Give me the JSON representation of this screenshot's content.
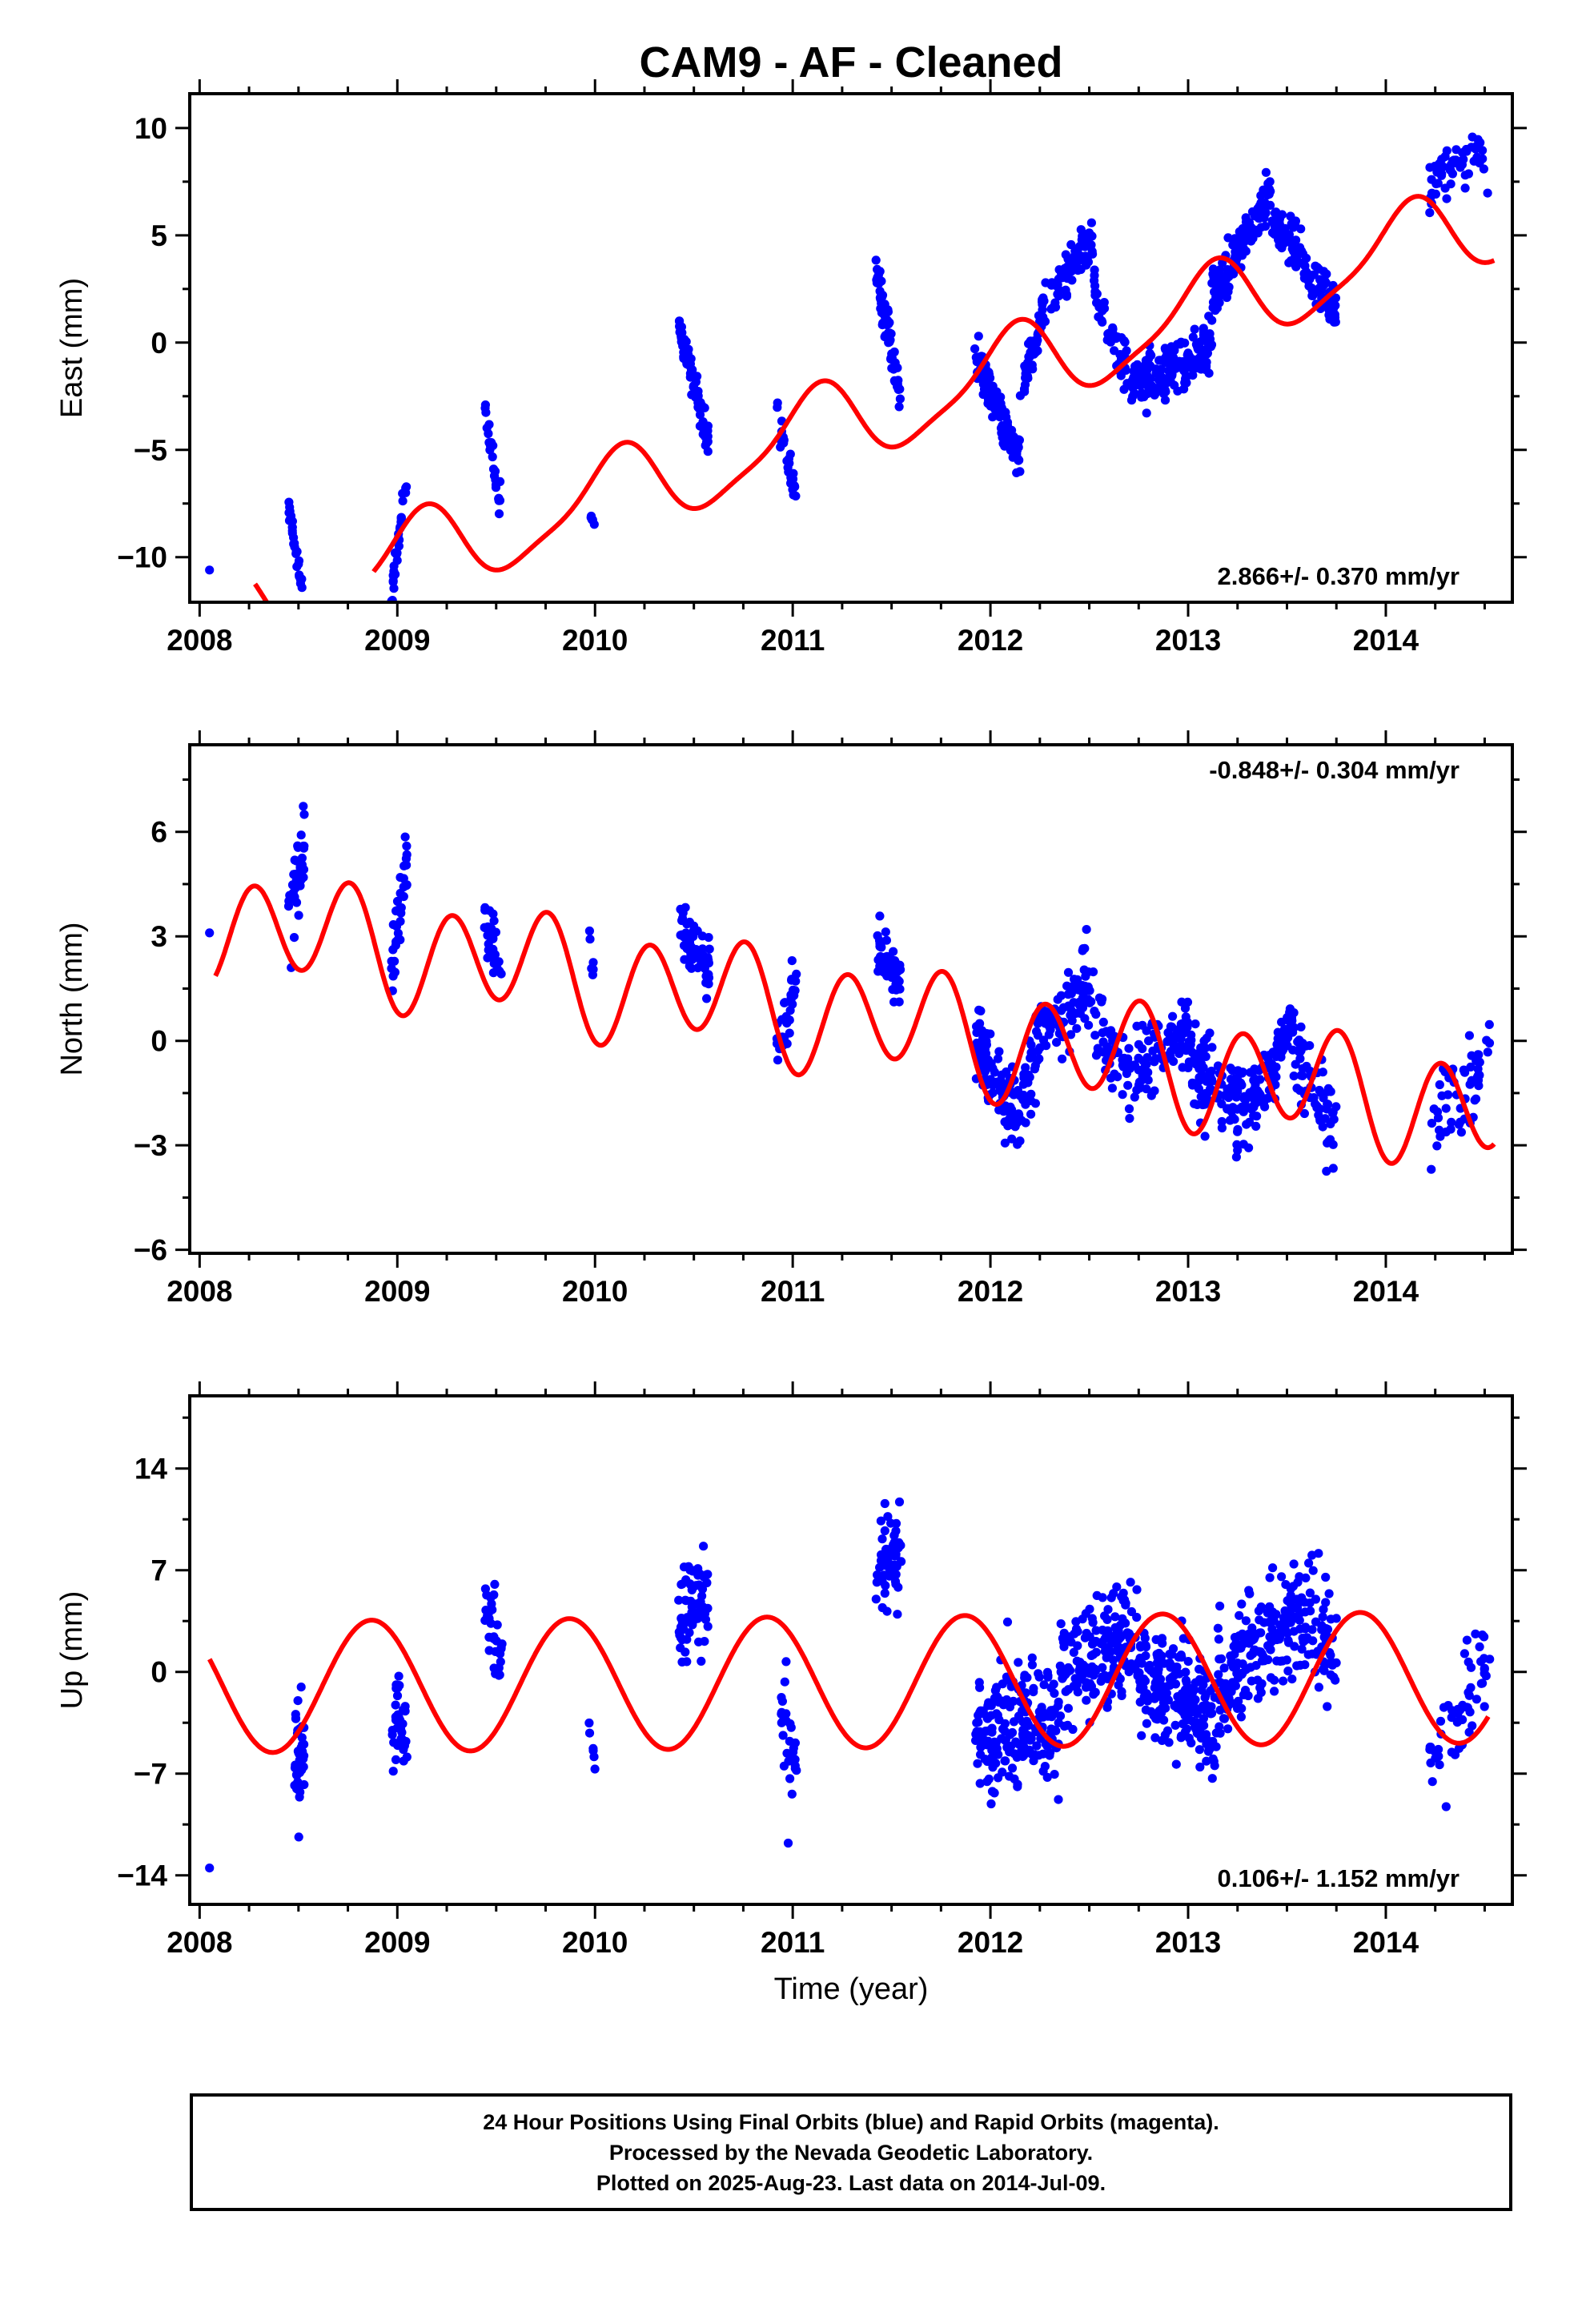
{
  "title": "CAM9  - AF - Cleaned",
  "footer": {
    "line1": "24 Hour Positions Using Final Orbits (blue) and Rapid Orbits (magenta).",
    "line2": "Processed by the Nevada Geodetic Laboratory.",
    "line3": "Plotted on 2025-Aug-23. Last data on 2014-Jul-09."
  },
  "colors": {
    "points": "#0000ff",
    "model": "#ff0000",
    "axes": "#000000"
  },
  "chart_data": [
    {
      "type": "scatter",
      "id": "east",
      "ylabel": "East (mm)",
      "xlabel": "",
      "xlim": [
        2007.95,
        2014.64
      ],
      "ylim": [
        -12.1,
        11.6
      ],
      "xticks": [
        2008,
        2009,
        2010,
        2011,
        2012,
        2013,
        2014
      ],
      "yticks": [
        -10,
        -5,
        0,
        5,
        10
      ],
      "rate_label": "2.866+/- 0.370 mm/yr",
      "rate_position": "bottom-right",
      "model": {
        "rate": 2.866,
        "a": 1.2,
        "b": 1.5,
        "a2": 0.35,
        "b2": -0.3,
        "offset": -8.8,
        "t0": 2009.5,
        "segments": [
          [
            2008.28,
            2008.62
          ],
          [
            2008.88,
            2014.55
          ]
        ]
      },
      "series": [
        {
          "clusters": [
            {
              "x": [
                2008.05,
                2008.06
              ],
              "y": [
                -10.6,
                -10.6
              ],
              "n": 1,
              "spread": 0
            },
            {
              "x": [
                2008.44,
                2008.52
              ],
              "y": [
                -7.0,
                -11.6
              ],
              "n": 28,
              "spread": 0.5
            },
            {
              "x": [
                2008.97,
                2009.05
              ],
              "y": [
                -11.8,
                -6.1
              ],
              "n": 35,
              "spread": 0.6
            },
            {
              "x": [
                2009.44,
                2009.52
              ],
              "y": [
                -3.2,
                -7.6
              ],
              "n": 25,
              "spread": 0.6
            },
            {
              "x": [
                2009.97,
                2010.0
              ],
              "y": [
                -7.6,
                -8.8
              ],
              "n": 6,
              "spread": 0.3
            },
            {
              "x": [
                2010.42,
                2010.58
              ],
              "y": [
                0.8,
                -4.8
              ],
              "n": 70,
              "spread": 0.8
            },
            {
              "x": [
                2010.92,
                2011.02
              ],
              "y": [
                -3.4,
                -7.4
              ],
              "n": 28,
              "spread": 0.7
            },
            {
              "x": [
                2011.42,
                2011.55
              ],
              "y": [
                3.4,
                -2.6
              ],
              "n": 70,
              "spread": 0.8
            },
            {
              "x": [
                2011.92,
                2012.15
              ],
              "y": [
                -0.6,
                -5.4
              ],
              "n": 120,
              "spread": 1.0
            },
            {
              "x": [
                2012.15,
                2012.28
              ],
              "y": [
                -2.4,
                1.8
              ],
              "n": 50,
              "spread": 0.9
            },
            {
              "x": [
                2012.3,
                2012.52
              ],
              "y": [
                2.0,
                4.9
              ],
              "n": 70,
              "spread": 0.9
            },
            {
              "x": [
                2012.52,
                2012.72
              ],
              "y": [
                2.5,
                -2.0
              ],
              "n": 50,
              "spread": 1.0
            },
            {
              "x": [
                2012.72,
                2013.12
              ],
              "y": [
                -2.0,
                -0.2
              ],
              "n": 170,
              "spread": 1.2
            },
            {
              "x": [
                2013.12,
                2013.42
              ],
              "y": [
                2.0,
                7.0
              ],
              "n": 140,
              "spread": 0.9
            },
            {
              "x": [
                2013.42,
                2013.75
              ],
              "y": [
                5.8,
                1.5
              ],
              "n": 120,
              "spread": 1.0
            },
            {
              "x": [
                2014.22,
                2014.48
              ],
              "y": [
                7.3,
                9.2
              ],
              "n": 55,
              "spread": 1.1
            },
            {
              "x": [
                2014.46,
                2014.52
              ],
              "y": [
                9.8,
                7.4
              ],
              "n": 6,
              "spread": 0.5
            }
          ]
        }
      ]
    },
    {
      "type": "scatter",
      "id": "north",
      "ylabel": "North (mm)",
      "xlabel": "",
      "xlim": [
        2007.95,
        2014.64
      ],
      "ylim": [
        -6.1,
        8.5
      ],
      "xticks": [
        2008,
        2009,
        2010,
        2011,
        2012,
        2013,
        2014
      ],
      "yticks": [
        -6,
        -3,
        0,
        3,
        6
      ],
      "rate_label": "-0.848+/- 0.304 mm/yr",
      "rate_position": "top-right",
      "model": {
        "rate": -0.848,
        "a": -0.3,
        "b": -0.4,
        "a2": -0.35,
        "b2": -1.4,
        "offset": 2.2,
        "t0": 2009.5,
        "segments": [
          [
            2008.08,
            2014.55
          ]
        ]
      },
      "series": [
        {
          "clusters": [
            {
              "x": [
                2008.05,
                2008.06
              ],
              "y": [
                3.1,
                3.1
              ],
              "n": 1,
              "spread": 0
            },
            {
              "x": [
                2008.45,
                2008.53
              ],
              "y": [
                3.2,
                6.0
              ],
              "n": 40,
              "spread": 1.2
            },
            {
              "x": [
                2008.97,
                2009.05
              ],
              "y": [
                2.0,
                5.0
              ],
              "n": 35,
              "spread": 0.9
            },
            {
              "x": [
                2009.44,
                2009.53
              ],
              "y": [
                3.6,
                1.6
              ],
              "n": 30,
              "spread": 0.8
            },
            {
              "x": [
                2009.97,
                2010.0
              ],
              "y": [
                3.2,
                1.8
              ],
              "n": 6,
              "spread": 0.8
            },
            {
              "x": [
                2010.43,
                2010.58
              ],
              "y": [
                3.2,
                2.0
              ],
              "n": 70,
              "spread": 0.7
            },
            {
              "x": [
                2010.92,
                2011.02
              ],
              "y": [
                -0.6,
                1.6
              ],
              "n": 30,
              "spread": 1.0
            },
            {
              "x": [
                2011.42,
                2011.55
              ],
              "y": [
                2.6,
                1.5
              ],
              "n": 60,
              "spread": 0.7
            },
            {
              "x": [
                2011.92,
                2012.12
              ],
              "y": [
                0.2,
                -2.2
              ],
              "n": 90,
              "spread": 1.1
            },
            {
              "x": [
                2012.12,
                2012.3
              ],
              "y": [
                -2.2,
                0.6
              ],
              "n": 60,
              "spread": 1.2
            },
            {
              "x": [
                2012.3,
                2012.52
              ],
              "y": [
                0.6,
                1.4
              ],
              "n": 70,
              "spread": 1.1
            },
            {
              "x": [
                2012.52,
                2012.72
              ],
              "y": [
                0.3,
                -1.2
              ],
              "n": 50,
              "spread": 1.0
            },
            {
              "x": [
                2012.72,
                2013.0
              ],
              "y": [
                -1.0,
                0.4
              ],
              "n": 90,
              "spread": 0.9
            },
            {
              "x": [
                2013.0,
                2013.3
              ],
              "y": [
                -0.6,
                -2.2
              ],
              "n": 110,
              "spread": 1.0
            },
            {
              "x": [
                2013.3,
                2013.52
              ],
              "y": [
                -2.0,
                0.4
              ],
              "n": 90,
              "spread": 0.9
            },
            {
              "x": [
                2013.52,
                2013.75
              ],
              "y": [
                0.0,
                -2.6
              ],
              "n": 70,
              "spread": 1.2
            },
            {
              "x": [
                2014.22,
                2014.48
              ],
              "y": [
                -2.0,
                -1.0
              ],
              "n": 50,
              "spread": 1.3
            },
            {
              "x": [
                2014.46,
                2014.53
              ],
              "y": [
                -1.0,
                0.2
              ],
              "n": 5,
              "spread": 0.5
            }
          ]
        }
      ]
    },
    {
      "type": "scatter",
      "id": "up",
      "ylabel": "Up (mm)",
      "xlabel": "Time (year)",
      "xlim": [
        2007.95,
        2014.64
      ],
      "ylim": [
        -16.0,
        19.0
      ],
      "xticks": [
        2008,
        2009,
        2010,
        2011,
        2012,
        2013,
        2014
      ],
      "yticks": [
        -14,
        -7,
        0,
        7,
        14
      ],
      "rate_label": "0.106+/- 1.152 mm/yr",
      "rate_position": "bottom-right",
      "model": {
        "rate": 0.106,
        "a": -3.3,
        "b": 3.1,
        "a2": 0.0,
        "b2": 0.0,
        "offset": -0.9,
        "t0": 2009.5,
        "segments": [
          [
            2008.05,
            2014.52
          ]
        ]
      },
      "series": [
        {
          "clusters": [
            {
              "x": [
                2008.05,
                2008.06
              ],
              "y": [
                -13.5,
                -13.5
              ],
              "n": 1,
              "spread": 0
            },
            {
              "x": [
                2008.48,
                2008.53
              ],
              "y": [
                -5.0,
                -6.0
              ],
              "n": 40,
              "spread": 3.2
            },
            {
              "x": [
                2008.97,
                2009.05
              ],
              "y": [
                -3.0,
                -4.0
              ],
              "n": 35,
              "spread": 3.2
            },
            {
              "x": [
                2009.44,
                2009.53
              ],
              "y": [
                4.0,
                2.0
              ],
              "n": 30,
              "spread": 3.0
            },
            {
              "x": [
                2009.97,
                2010.0
              ],
              "y": [
                -5.0,
                -7.0
              ],
              "n": 6,
              "spread": 2.0
            },
            {
              "x": [
                2010.42,
                2010.58
              ],
              "y": [
                4.0,
                6.0
              ],
              "n": 70,
              "spread": 3.5
            },
            {
              "x": [
                2010.93,
                2011.02
              ],
              "y": [
                -2.0,
                -6.0
              ],
              "n": 30,
              "spread": 4.0
            },
            {
              "x": [
                2011.42,
                2011.55
              ],
              "y": [
                7.0,
                8.0
              ],
              "n": 60,
              "spread": 3.0
            },
            {
              "x": [
                2011.92,
                2012.35
              ],
              "y": [
                -4.5,
                -3.0
              ],
              "n": 200,
              "spread": 3.6
            },
            {
              "x": [
                2012.35,
                2012.75
              ],
              "y": [
                0.0,
                3.0
              ],
              "n": 170,
              "spread": 3.8
            },
            {
              "x": [
                2012.75,
                2013.15
              ],
              "y": [
                0.5,
                -4.0
              ],
              "n": 200,
              "spread": 3.6
            },
            {
              "x": [
                2013.15,
                2013.52
              ],
              "y": [
                -1.0,
                3.5
              ],
              "n": 160,
              "spread": 3.4
            },
            {
              "x": [
                2013.52,
                2013.75
              ],
              "y": [
                4.0,
                2.0
              ],
              "n": 80,
              "spread": 4.0
            },
            {
              "x": [
                2014.22,
                2014.5
              ],
              "y": [
                -6.0,
                0.0
              ],
              "n": 50,
              "spread": 3.5
            },
            {
              "x": [
                2014.48,
                2014.53
              ],
              "y": [
                1.0,
                0.0
              ],
              "n": 5,
              "spread": 2.0
            }
          ]
        }
      ]
    }
  ]
}
